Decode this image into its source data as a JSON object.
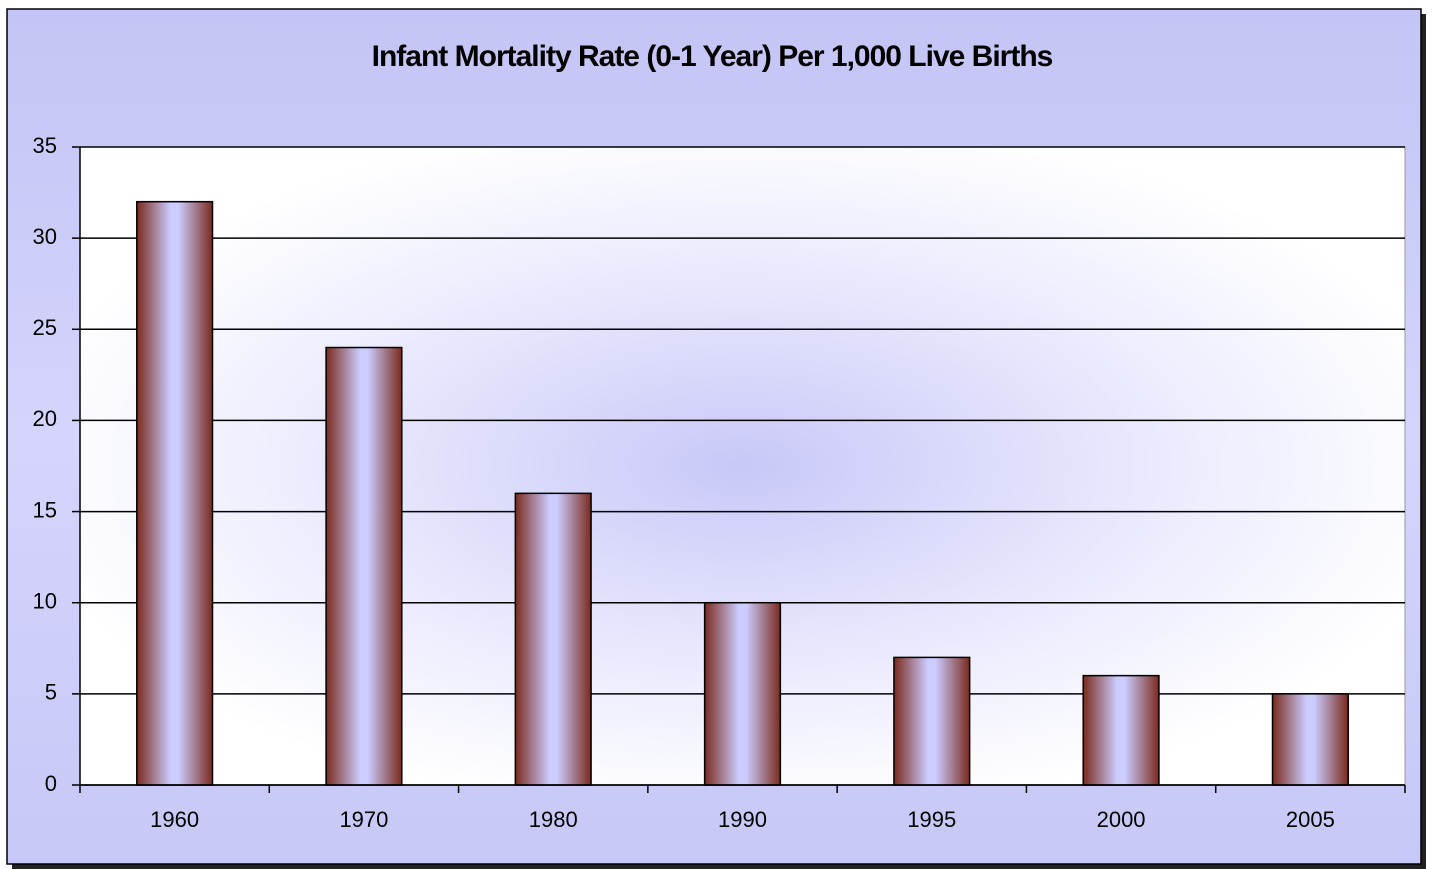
{
  "chart_data": {
    "type": "bar",
    "title": "Infant Mortality Rate (0-1 Year) Per 1,000 Live Births",
    "categories": [
      "1960",
      "1970",
      "1980",
      "1990",
      "1995",
      "2000",
      "2005"
    ],
    "values": [
      32,
      24,
      16,
      10,
      7,
      6,
      5
    ],
    "color": "#ccccff",
    "ylim": [
      0,
      35
    ],
    "yticks": [
      0,
      5,
      10,
      15,
      20,
      25,
      30,
      35
    ],
    "grid": true
  }
}
